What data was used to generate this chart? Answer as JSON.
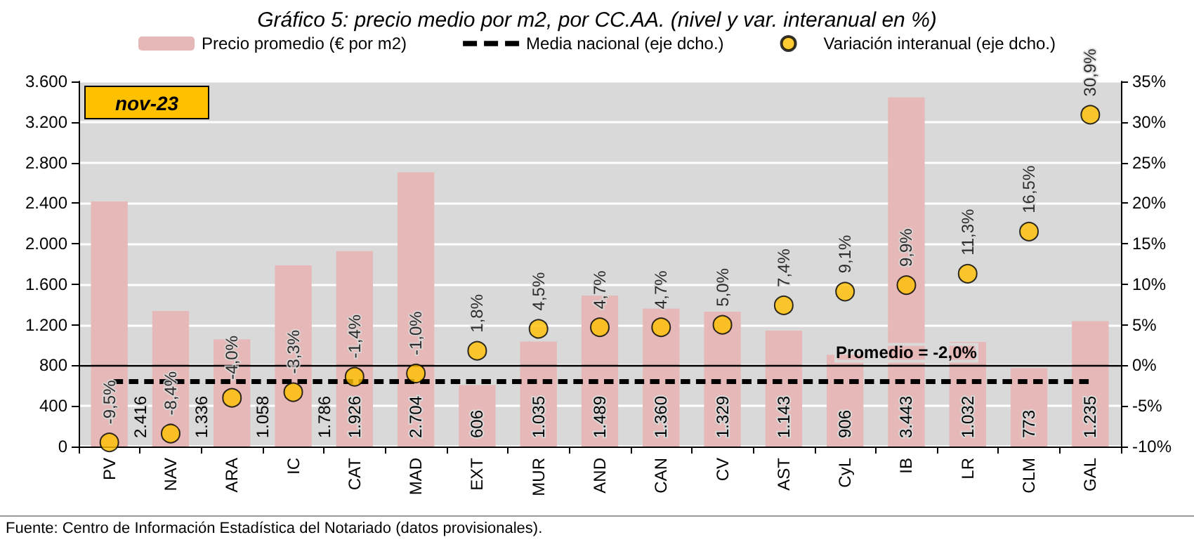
{
  "chart_data": {
    "type": "bar",
    "title": "Gráfico 5: precio medio por m2, por CC.AA. (nivel y var. interanual en %)",
    "categories": [
      "PV",
      "NAV",
      "ARA",
      "IC",
      "CAT",
      "MAD",
      "EXT",
      "MUR",
      "AND",
      "CAN",
      "CV",
      "AST",
      "CyL",
      "IB",
      "LR",
      "CLM",
      "GAL"
    ],
    "series": [
      {
        "name": "Precio promedio (€ por m2)",
        "color": "#e6b9b8",
        "values": [
          2416,
          1336,
          1058,
          1786,
          1926,
          2704,
          606,
          1035,
          1489,
          1360,
          1329,
          1143,
          906,
          3443,
          1032,
          773,
          1235
        ],
        "value_labels": [
          "2.416",
          "1.336",
          "1.058",
          "1.786",
          "1.926",
          "2.704",
          "606",
          "1.035",
          "1.489",
          "1.360",
          "1.329",
          "1.143",
          "906",
          "3.443",
          "1.032",
          "773",
          "1.235"
        ]
      },
      {
        "name": "Media nacional (eje dcho.)",
        "type": "line",
        "axis": "y2",
        "color": "#000000",
        "line_style": "dashed",
        "marker": "none",
        "values": [
          -2,
          -2,
          -2,
          -2,
          -2,
          -2,
          -2,
          -2,
          -2,
          -2,
          -2,
          -2,
          -2,
          -2,
          -2,
          -2,
          -2
        ]
      },
      {
        "name": "Variación interanual (eje dcho.)",
        "type": "scatter",
        "axis": "y2",
        "color": "#ffc000",
        "marker": "circle",
        "values": [
          -9.5,
          -8.4,
          -4.0,
          -3.3,
          -1.4,
          -1.0,
          1.8,
          4.5,
          4.7,
          4.7,
          5.0,
          7.4,
          9.1,
          9.9,
          11.3,
          16.5,
          30.9
        ],
        "value_labels": [
          "-9,5%",
          "-8,4%",
          "-4,0%",
          "-3,3%",
          "-1,4%",
          "-1,0%",
          "1,8%",
          "4,5%",
          "4,7%",
          "4,7%",
          "5,0%",
          "7,4%",
          "9,1%",
          "9,9%",
          "11,3%",
          "16,5%",
          "30,9%"
        ]
      }
    ],
    "ylim": [
      0,
      3600
    ],
    "yticks": [
      {
        "value": 0,
        "label": "0"
      },
      {
        "value": 400,
        "label": "400"
      },
      {
        "value": 800,
        "label": "800"
      },
      {
        "value": 1200,
        "label": "1.200"
      },
      {
        "value": 1600,
        "label": "1.600"
      },
      {
        "value": 2000,
        "label": "2.000"
      },
      {
        "value": 2400,
        "label": "2.400"
      },
      {
        "value": 2800,
        "label": "2.800"
      },
      {
        "value": 3200,
        "label": "3.200"
      },
      {
        "value": 3600,
        "label": "3.600"
      }
    ],
    "y2lim": [
      -10,
      35
    ],
    "y2ticks": [
      {
        "value": -10,
        "label": "-10%"
      },
      {
        "value": -5,
        "label": "-5%"
      },
      {
        "value": 0,
        "label": "0%"
      },
      {
        "value": 5,
        "label": "5%"
      },
      {
        "value": 10,
        "label": "10%"
      },
      {
        "value": 15,
        "label": "15%"
      },
      {
        "value": 20,
        "label": "20%"
      },
      {
        "value": 25,
        "label": "25%"
      },
      {
        "value": 30,
        "label": "30%"
      },
      {
        "value": 35,
        "label": "35%"
      }
    ],
    "ref_lines": [
      {
        "axis": "y2",
        "value": 0,
        "color": "#000000",
        "line_style": "solid"
      }
    ],
    "annotations": [
      "Promedio = -2,0%",
      "nov-23",
      "Fuente: Centro de Información Estadística del Notariado (datos provisionales)."
    ],
    "grid": "y",
    "legend": "top"
  }
}
